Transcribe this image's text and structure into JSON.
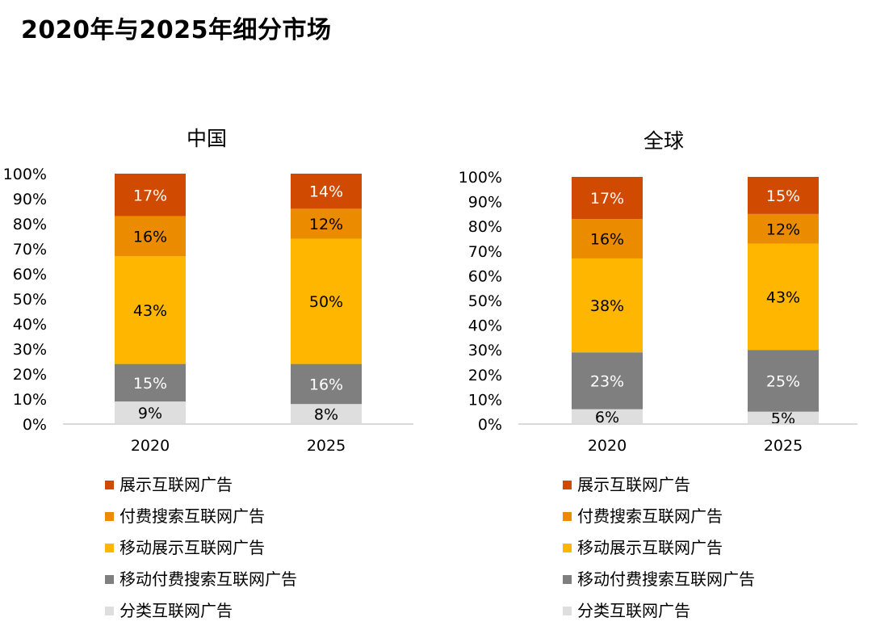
{
  "title": "2020年与2025年细分市场",
  "colors": {
    "展示互联网广告": "#d04a02",
    "付费搜索互联网广告": "#eb8c00",
    "移动展示互联网广告": "#ffb600",
    "移动付费搜索互联网广告": "#7f7f7f",
    "分类互联网广告": "#dedede"
  },
  "chart_data": [
    {
      "type": "bar",
      "stacked": true,
      "title": "中国",
      "categories": [
        "2020",
        "2025"
      ],
      "ylim": [
        0,
        100
      ],
      "yticks": [
        "0%",
        "10%",
        "20%",
        "30%",
        "40%",
        "50%",
        "60%",
        "70%",
        "80%",
        "90%",
        "100%"
      ],
      "series": [
        {
          "name": "分类互联网广告",
          "values": [
            9,
            8
          ],
          "labels": [
            "9%",
            "8%"
          ]
        },
        {
          "name": "移动付费搜索互联网广告",
          "values": [
            15,
            16
          ],
          "labels": [
            "15%",
            "16%"
          ]
        },
        {
          "name": "移动展示互联网广告",
          "values": [
            43,
            50
          ],
          "labels": [
            "43%",
            "50%"
          ]
        },
        {
          "name": "付费搜索互联网广告",
          "values": [
            16,
            12
          ],
          "labels": [
            "16%",
            "12%"
          ]
        },
        {
          "name": "展示互联网广告",
          "values": [
            17,
            14
          ],
          "labels": [
            "17%",
            "14%"
          ]
        }
      ],
      "legend": [
        "展示互联网广告",
        "付费搜索互联网广告",
        "移动展示互联网广告",
        "移动付费搜索互联网广告",
        "分类互联网广告"
      ],
      "legend_position": "bottom"
    },
    {
      "type": "bar",
      "stacked": true,
      "title": "全球",
      "categories": [
        "2020",
        "2025"
      ],
      "ylim": [
        0,
        100
      ],
      "yticks": [
        "0%",
        "10%",
        "20%",
        "30%",
        "40%",
        "50%",
        "60%",
        "70%",
        "80%",
        "90%",
        "100%"
      ],
      "series": [
        {
          "name": "分类互联网广告",
          "values": [
            6,
            5
          ],
          "labels": [
            "6%",
            "5%"
          ]
        },
        {
          "name": "移动付费搜索互联网广告",
          "values": [
            23,
            25
          ],
          "labels": [
            "23%",
            "25%"
          ]
        },
        {
          "name": "移动展示互联网广告",
          "values": [
            38,
            43
          ],
          "labels": [
            "38%",
            "43%"
          ]
        },
        {
          "name": "付费搜索互联网广告",
          "values": [
            16,
            12
          ],
          "labels": [
            "16%",
            "12%"
          ]
        },
        {
          "name": "展示互联网广告",
          "values": [
            17,
            15
          ],
          "labels": [
            "17%",
            "15%"
          ]
        }
      ],
      "legend": [
        "展示互联网广告",
        "付费搜索互联网广告",
        "移动展示互联网广告",
        "移动付费搜索互联网广告",
        "分类互联网广告"
      ],
      "legend_position": "bottom"
    }
  ]
}
